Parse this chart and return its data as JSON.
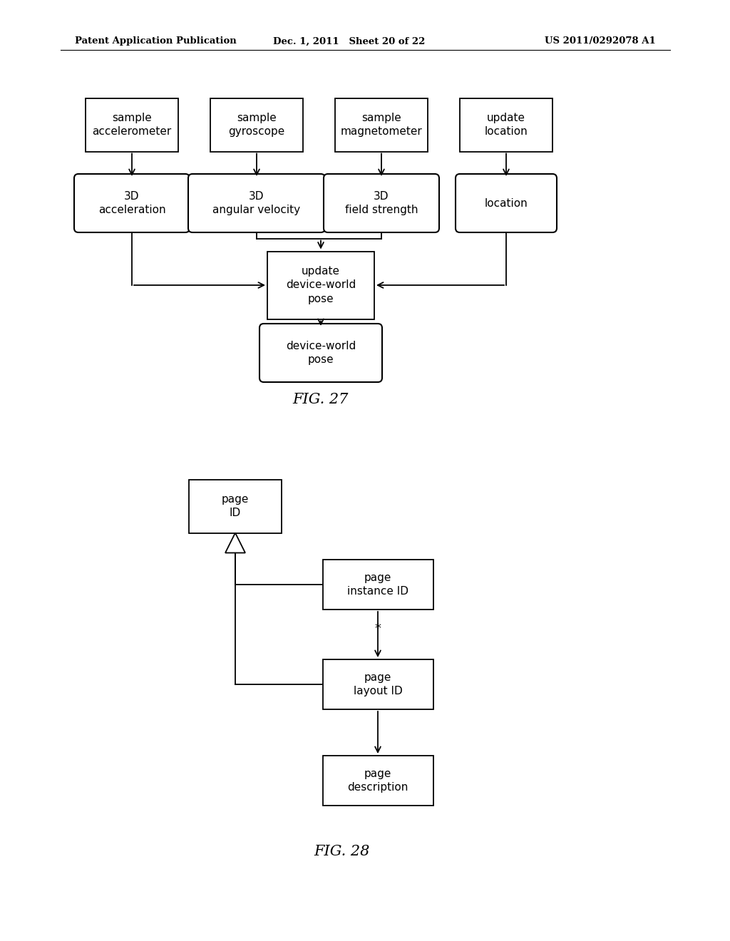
{
  "bg_color": "#ffffff",
  "header_left": "Patent Application Publication",
  "header_mid": "Dec. 1, 2011   Sheet 20 of 22",
  "header_right": "US 2011/0292078 A1",
  "fig27_label": "FIG. 27",
  "fig28_label": "FIG. 28"
}
